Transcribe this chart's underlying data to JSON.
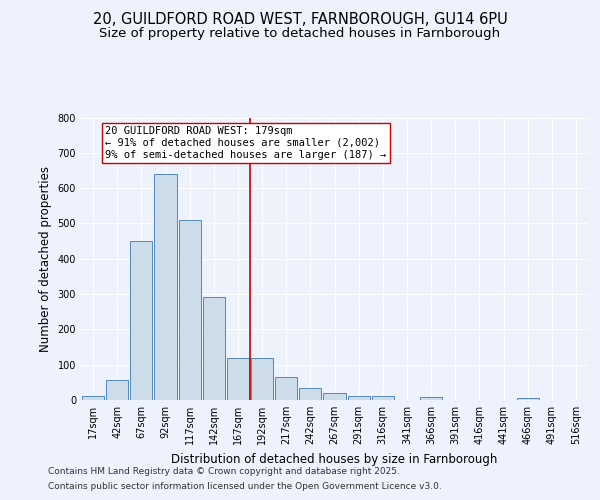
{
  "title": "20, GUILDFORD ROAD WEST, FARNBOROUGH, GU14 6PU",
  "subtitle": "Size of property relative to detached houses in Farnborough",
  "xlabel": "Distribution of detached houses by size in Farnborough",
  "ylabel": "Number of detached properties",
  "bin_labels": [
    "17sqm",
    "42sqm",
    "67sqm",
    "92sqm",
    "117sqm",
    "142sqm",
    "167sqm",
    "192sqm",
    "217sqm",
    "242sqm",
    "267sqm",
    "291sqm",
    "316sqm",
    "341sqm",
    "366sqm",
    "391sqm",
    "416sqm",
    "441sqm",
    "466sqm",
    "491sqm",
    "516sqm"
  ],
  "bar_values": [
    12,
    58,
    450,
    640,
    510,
    293,
    120,
    120,
    65,
    35,
    20,
    10,
    10,
    0,
    8,
    0,
    0,
    0,
    5,
    0,
    0
  ],
  "bar_color": "#ccdce8",
  "bar_edgecolor": "#5588bb",
  "vline_color": "#cc0000",
  "annotation_text": "20 GUILDFORD ROAD WEST: 179sqm\n← 91% of detached houses are smaller (2,002)\n9% of semi-detached houses are larger (187) →",
  "annotation_box_color": "#ffffff",
  "annotation_box_edgecolor": "#cc0000",
  "bg_color": "#eef2fc",
  "plot_bg_color": "#eef2fc",
  "grid_color": "#ffffff",
  "ylim": [
    0,
    800
  ],
  "yticks": [
    0,
    100,
    200,
    300,
    400,
    500,
    600,
    700,
    800
  ],
  "footer1": "Contains HM Land Registry data © Crown copyright and database right 2025.",
  "footer2": "Contains public sector information licensed under the Open Government Licence v3.0.",
  "title_fontsize": 10.5,
  "subtitle_fontsize": 9.5,
  "axis_label_fontsize": 8.5,
  "tick_fontsize": 7,
  "annotation_fontsize": 7.5,
  "footer_fontsize": 6.5
}
